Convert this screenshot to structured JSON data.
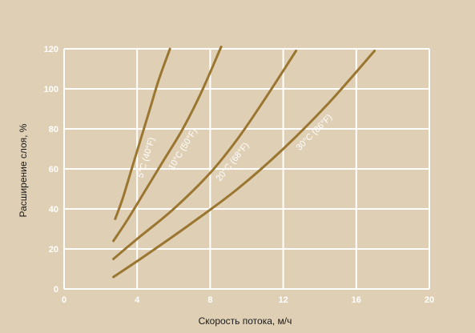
{
  "chart_data": {
    "type": "line",
    "title": "",
    "xlabel": "Скорость потока, м/ч",
    "ylabel": "Расширение слоя, %",
    "xlim": [
      0,
      20
    ],
    "ylim": [
      0,
      120
    ],
    "xticks": [
      0,
      4,
      8,
      12,
      16,
      20
    ],
    "yticks": [
      0,
      20,
      40,
      60,
      80,
      100,
      120
    ],
    "grid": true,
    "legend": "inline labels along curves",
    "colors": {
      "background": "#dfcfb4",
      "plot_background": "#dccbb0",
      "grid": "#ffffff",
      "line": "#9a7630"
    },
    "series": [
      {
        "name": "5°C (40°F)",
        "x": [
          2.8,
          3.2,
          3.7,
          4.2,
          4.7,
          5.2,
          5.8
        ],
        "y": [
          35,
          45,
          60,
          75,
          90,
          105,
          120
        ]
      },
      {
        "name": "10°C (50°F)",
        "x": [
          2.7,
          3.5,
          4.5,
          5.5,
          6.5,
          7.5,
          8.6
        ],
        "y": [
          24,
          35,
          50,
          65,
          80,
          98,
          121
        ]
      },
      {
        "name": "20°C (68°F)",
        "x": [
          2.7,
          4.0,
          6.0,
          8.0,
          9.5,
          11.0,
          12.7
        ],
        "y": [
          15,
          25,
          40,
          58,
          75,
          95,
          119
        ]
      },
      {
        "name": "30°C (86°F)",
        "x": [
          2.7,
          4.5,
          7.0,
          9.5,
          12.0,
          14.5,
          17.0
        ],
        "y": [
          6,
          17,
          33,
          50,
          70,
          93,
          119
        ]
      }
    ]
  }
}
